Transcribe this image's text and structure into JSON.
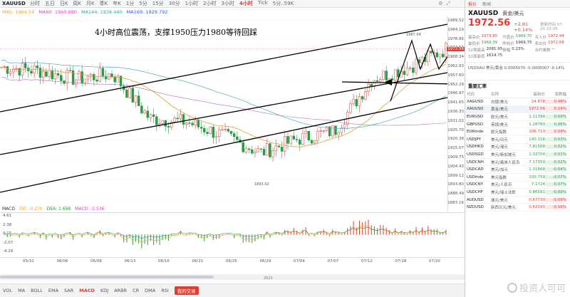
{
  "toolbar": {
    "symbol": "XAUUSD",
    "timeframes": [
      "分时",
      "五日",
      "日K",
      "周K",
      "月K",
      "季K",
      "年K",
      "1分",
      "5分",
      "15分",
      "30分",
      "1小时",
      "2小时",
      "3小时",
      "4小时",
      "Tick",
      "5分..59K"
    ],
    "active_timeframe": "4小时"
  },
  "indicators_line": {
    "items": [
      {
        "label": "MA5",
        "value": "1964.54",
        "color": "#f0a030"
      },
      {
        "label": "MA60",
        "value": "1960.690",
        "color": "#e23bd0"
      },
      {
        "label": "MA144",
        "value": "1938.440",
        "color": "#2aa7a0"
      },
      {
        "label": "MA169",
        "value": "1929.792",
        "color": "#2a5ae2"
      }
    ]
  },
  "annotation": "4小时高位震荡，支撑1950压力1980等待回踩",
  "price_axis": {
    "labels": [
      "1989.52",
      "1984.19",
      "1978.86",
      "1973.53",
      "1968.24",
      "1962.93",
      "1957.60",
      "1952.29",
      "1946.97",
      "1941.65",
      "1936.33",
      "1931.02",
      "1925.70",
      "1920.38",
      "1915.07",
      "1909.75",
      "1904.43",
      "1899.12",
      "1893.80",
      "1888.49",
      "1883.16"
    ],
    "current": "1972.56",
    "high_mark": "1987.04",
    "low_mark": "1893.02"
  },
  "macd": {
    "legend": [
      {
        "label": "MACD",
        "color": "#333"
      },
      {
        "label": "DIF: -0.270",
        "color": "#f0a030"
      },
      {
        "label": "DEA: 1.698",
        "color": "#2a9a48"
      },
      {
        "label": "MACD: -2.536",
        "color": "#e23bd0"
      }
    ],
    "axis": [
      "4.61",
      "2.38",
      "0.15",
      "-2.07",
      "-4.29"
    ]
  },
  "dates": [
    "05/31",
    "06/06",
    "06/08",
    "06/13",
    "06/16",
    "06/21",
    "06/25",
    "06/29",
    "07/04",
    "07/07",
    "07/12",
    "07/18",
    "07/20"
  ],
  "year_label": "2023",
  "bottom_indicators": {
    "items": [
      "VOL",
      "MA",
      "BOLL",
      "EMA",
      "SAR",
      "MACD",
      "KDJ",
      "ARBR",
      "CR",
      "DMA",
      "RSI"
    ],
    "active": "MACD",
    "trade_label": "我的交易"
  },
  "right_panel": {
    "tabs": [
      "报价",
      "新闻"
    ],
    "symbol": "XAUUSD",
    "name": "黄金/美元",
    "price": "1972.56",
    "change": "+2.81 +0.14%",
    "time": "更新时间 07-20 22:05",
    "stats": [
      {
        "k": "最高价",
        "v": "1973.85",
        "c": "up"
      },
      {
        "k": "开盘价",
        "v": "1969.70",
        "c": "dn"
      },
      {
        "k": "买入价",
        "v": "1972.44",
        "c": "up"
      },
      {
        "k": "最低价",
        "v": "1969.39",
        "c": "dn"
      },
      {
        "k": "昨收价",
        "v": "1969.75",
        "c": ""
      },
      {
        "k": "卖出价",
        "v": "1972.68",
        "c": "up"
      },
      {
        "k": "52周最高",
        "v": "2081.95",
        "c": ""
      },
      {
        "k": "振幅",
        "v": "0.23%",
        "c": ""
      },
      {
        "k": "合约乘数",
        "v": "--",
        "c": ""
      },
      {
        "k": "52周最低",
        "v": "1614.75",
        "c": ""
      },
      {
        "k": "",
        "v": "",
        "c": ""
      },
      {
        "k": "",
        "v": "",
        "c": ""
      }
    ],
    "cross": "USDXAU 美元/黄金  0.0005070  -0.0000007  -0.14%",
    "section_title": "重要汇率",
    "table_headers": [
      "代码",
      "名称",
      "最新价",
      "涨跌幅"
    ],
    "fx": [
      {
        "sym": "XAGUSD",
        "name": "白银/美元",
        "px": "24.878",
        "pc": "0.48%",
        "dir": "up"
      },
      {
        "sym": "XAUUSD",
        "name": "黄金/美元",
        "px": "1972.56",
        "pc": "0.14%",
        "dir": "up"
      },
      {
        "sym": "EURUSD",
        "name": "欧元/美元",
        "px": "1.11394",
        "pc": "0.09%",
        "dir": "dn"
      },
      {
        "sym": "GBPUSD",
        "name": "英镑/美元",
        "px": "1.28783",
        "pc": "0.06%",
        "dir": "dn"
      },
      {
        "sym": "EURinde",
        "name": "欧元指数",
        "px": "106.719",
        "pc": "0.04%",
        "dir": "up"
      },
      {
        "sym": "USDJPY",
        "name": "美元/日元",
        "px": "140.116",
        "pc": "0.03%",
        "dir": "dn"
      },
      {
        "sym": "USDHKD",
        "name": "美元/港元",
        "px": "7.81568",
        "pc": "0.02%",
        "dir": "dn"
      },
      {
        "sym": "USDSGD",
        "name": "美元/新加坡元",
        "px": "1.32704",
        "pc": "0.01%",
        "dir": "dn"
      },
      {
        "sym": "USDCNH",
        "name": "美元/离岸人民币",
        "px": "7.17359",
        "pc": "-0.02%",
        "dir": "dn"
      },
      {
        "sym": "USDCAD",
        "name": "美元/加元",
        "px": "1.31668",
        "pc": "-0.04%",
        "dir": "dn"
      },
      {
        "sym": "USDinde",
        "name": "美元指数",
        "px": "100.759",
        "pc": "-0.07%",
        "dir": "dn"
      },
      {
        "sym": "USDCNY",
        "name": "美元/人民币",
        "px": "7.1724",
        "pc": "-0.07%",
        "dir": "dn"
      },
      {
        "sym": "USDCHF",
        "name": "美元/瑞士法郎",
        "px": "0.86591",
        "pc": "-0.09%",
        "dir": "dn"
      },
      {
        "sym": "AUDUSD",
        "name": "澳元/美元",
        "px": "0.67730",
        "pc": "-0.09%",
        "dir": "up"
      },
      {
        "sym": "NZDUSD",
        "name": "新西兰元/美元",
        "px": "0.62241",
        "pc": "-0.16%",
        "dir": "up"
      }
    ],
    "selected_index": 1,
    "watermark": "投资人可可"
  },
  "colors": {
    "up": "#e23b30",
    "down": "#2a9a48",
    "ma_yellow": "#d9a33a",
    "ma_teal": "#5fb8c0",
    "ma_purple": "#b070c0"
  },
  "chart_data": {
    "type": "candlestick",
    "symbol": "XAUUSD",
    "timeframe": "4小时",
    "x": [
      "05/31",
      "06/06",
      "06/08",
      "06/13",
      "06/16",
      "06/21",
      "06/25",
      "06/29",
      "07/04",
      "07/07",
      "07/12",
      "07/18",
      "07/20"
    ],
    "close_approx": [
      1962,
      1960,
      1955,
      1958,
      1932,
      1930,
      1922,
      1912,
      1920,
      1925,
      1955,
      1962,
      1972.56
    ],
    "ylim": [
      1883.16,
      1989.52
    ],
    "high": 1987.04,
    "low": 1893.02,
    "last": 1972.56
  }
}
